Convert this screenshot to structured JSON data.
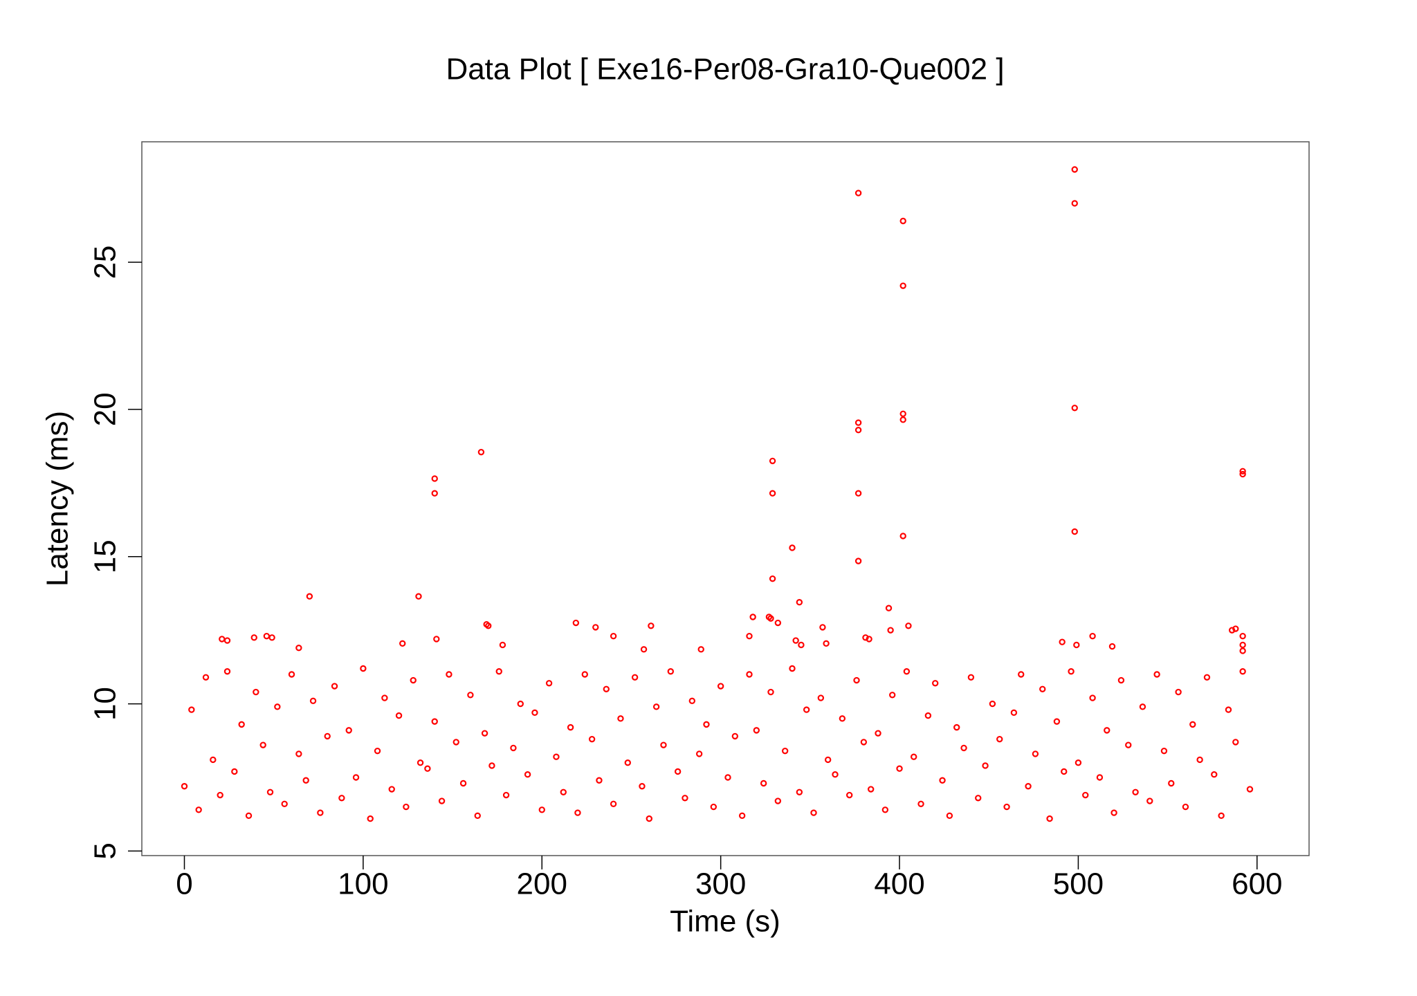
{
  "chart_data": {
    "type": "scatter",
    "title": "Data Plot [ Exe16-Per08-Gra10-Que002 ]",
    "x_label": "Time (s)",
    "y_label": "Latency (ms)",
    "color": "#ff0000",
    "xlim": [
      -23.8,
      629.1
    ],
    "ylim": [
      4.845,
      29.09
    ],
    "xticks": [
      0,
      100,
      200,
      300,
      400,
      500,
      600
    ],
    "yticks": [
      5,
      10,
      15,
      20,
      25
    ],
    "x": [
      0,
      4,
      8,
      12,
      16,
      20,
      24,
      28,
      32,
      36,
      40,
      44,
      48,
      52,
      56,
      60,
      64,
      68,
      72,
      76,
      80,
      84,
      88,
      92,
      96,
      100,
      104,
      108,
      112,
      116,
      120,
      124,
      128,
      132,
      136,
      140,
      144,
      148,
      152,
      156,
      160,
      164,
      168,
      172,
      176,
      180,
      184,
      188,
      192,
      196,
      200,
      204,
      208,
      212,
      216,
      220,
      224,
      228,
      232,
      236,
      240,
      244,
      248,
      252,
      256,
      260,
      264,
      268,
      272,
      276,
      280,
      284,
      288,
      292,
      296,
      300,
      304,
      308,
      312,
      316,
      320,
      324,
      328,
      332,
      336,
      340,
      344,
      348,
      352,
      356,
      360,
      364,
      368,
      372,
      376,
      380,
      384,
      388,
      392,
      396,
      400,
      404,
      408,
      412,
      416,
      420,
      424,
      428,
      432,
      436,
      440,
      444,
      448,
      452,
      456,
      460,
      464,
      468,
      472,
      476,
      480,
      484,
      488,
      492,
      496,
      500,
      504,
      508,
      512,
      516,
      520,
      524,
      528,
      532,
      536,
      540,
      544,
      548,
      552,
      556,
      560,
      564,
      568,
      572,
      576,
      580,
      584,
      588,
      592,
      596,
      21,
      24,
      39,
      46,
      49,
      64,
      70,
      122,
      131,
      140,
      140,
      141,
      166,
      169,
      170,
      178,
      219,
      230,
      240,
      257,
      261,
      289,
      316,
      318,
      327,
      328,
      329,
      329,
      329,
      332,
      340,
      342,
      344,
      345,
      357,
      359,
      377,
      377,
      377,
      377,
      377,
      381,
      383,
      394,
      395,
      402,
      402,
      402,
      402,
      402,
      405,
      491,
      498,
      498,
      498,
      498,
      499,
      508,
      519,
      586,
      588,
      592,
      592,
      592,
      592,
      592
    ],
    "values": [
      7.2,
      9.8,
      6.4,
      10.9,
      8.1,
      6.9,
      11.1,
      7.7,
      9.3,
      6.2,
      10.4,
      8.6,
      7.0,
      9.9,
      6.6,
      11.0,
      8.3,
      7.4,
      10.1,
      6.3,
      8.9,
      10.6,
      6.8,
      9.1,
      7.5,
      11.2,
      6.1,
      8.4,
      10.2,
      7.1,
      9.6,
      6.5,
      10.8,
      8.0,
      7.8,
      9.4,
      6.7,
      11.0,
      8.7,
      7.3,
      10.3,
      6.2,
      9.0,
      7.9,
      11.1,
      6.9,
      8.5,
      10.0,
      7.6,
      9.7,
      6.4,
      10.7,
      8.2,
      7.0,
      9.2,
      6.3,
      11.0,
      8.8,
      7.4,
      10.5,
      6.6,
      9.5,
      8.0,
      10.9,
      7.2,
      6.1,
      9.9,
      8.6,
      11.1,
      7.7,
      6.8,
      10.1,
      8.3,
      9.3,
      6.5,
      10.6,
      7.5,
      8.9,
      6.2,
      11.0,
      9.1,
      7.3,
      10.4,
      6.7,
      8.4,
      11.2,
      7.0,
      9.8,
      6.3,
      10.2,
      8.1,
      7.6,
      9.5,
      6.9,
      10.8,
      8.7,
      7.1,
      9.0,
      6.4,
      10.3,
      7.8,
      11.1,
      8.2,
      6.6,
      9.6,
      10.7,
      7.4,
      6.2,
      9.2,
      8.5,
      10.9,
      6.8,
      7.9,
      10.0,
      8.8,
      6.5,
      9.7,
      11.0,
      7.2,
      8.3,
      10.5,
      6.1,
      9.4,
      7.7,
      11.1,
      8.0,
      6.9,
      10.2,
      7.5,
      9.1,
      6.3,
      10.8,
      8.6,
      7.0,
      9.9,
      6.7,
      11.0,
      8.4,
      7.3,
      10.4,
      6.5,
      9.3,
      8.1,
      10.9,
      7.6,
      6.2,
      9.8,
      8.7,
      11.1,
      7.1,
      12.2,
      12.15,
      12.25,
      12.3,
      12.25,
      11.9,
      13.65,
      12.05,
      13.65,
      17.65,
      17.15,
      12.2,
      18.55,
      12.7,
      12.65,
      12.0,
      12.75,
      12.6,
      12.3,
      11.85,
      12.65,
      11.85,
      12.3,
      12.95,
      12.95,
      12.9,
      18.25,
      17.15,
      14.25,
      12.75,
      15.3,
      12.15,
      13.45,
      12.0,
      12.6,
      12.05,
      27.35,
      19.55,
      19.3,
      17.15,
      14.85,
      12.25,
      12.2,
      13.25,
      12.5,
      26.4,
      24.2,
      19.85,
      19.65,
      15.7,
      12.65,
      12.1,
      28.15,
      27.0,
      20.05,
      15.85,
      12.0,
      12.3,
      11.95,
      12.5,
      12.55,
      17.9,
      17.8,
      12.3,
      12.0,
      11.8
    ]
  }
}
